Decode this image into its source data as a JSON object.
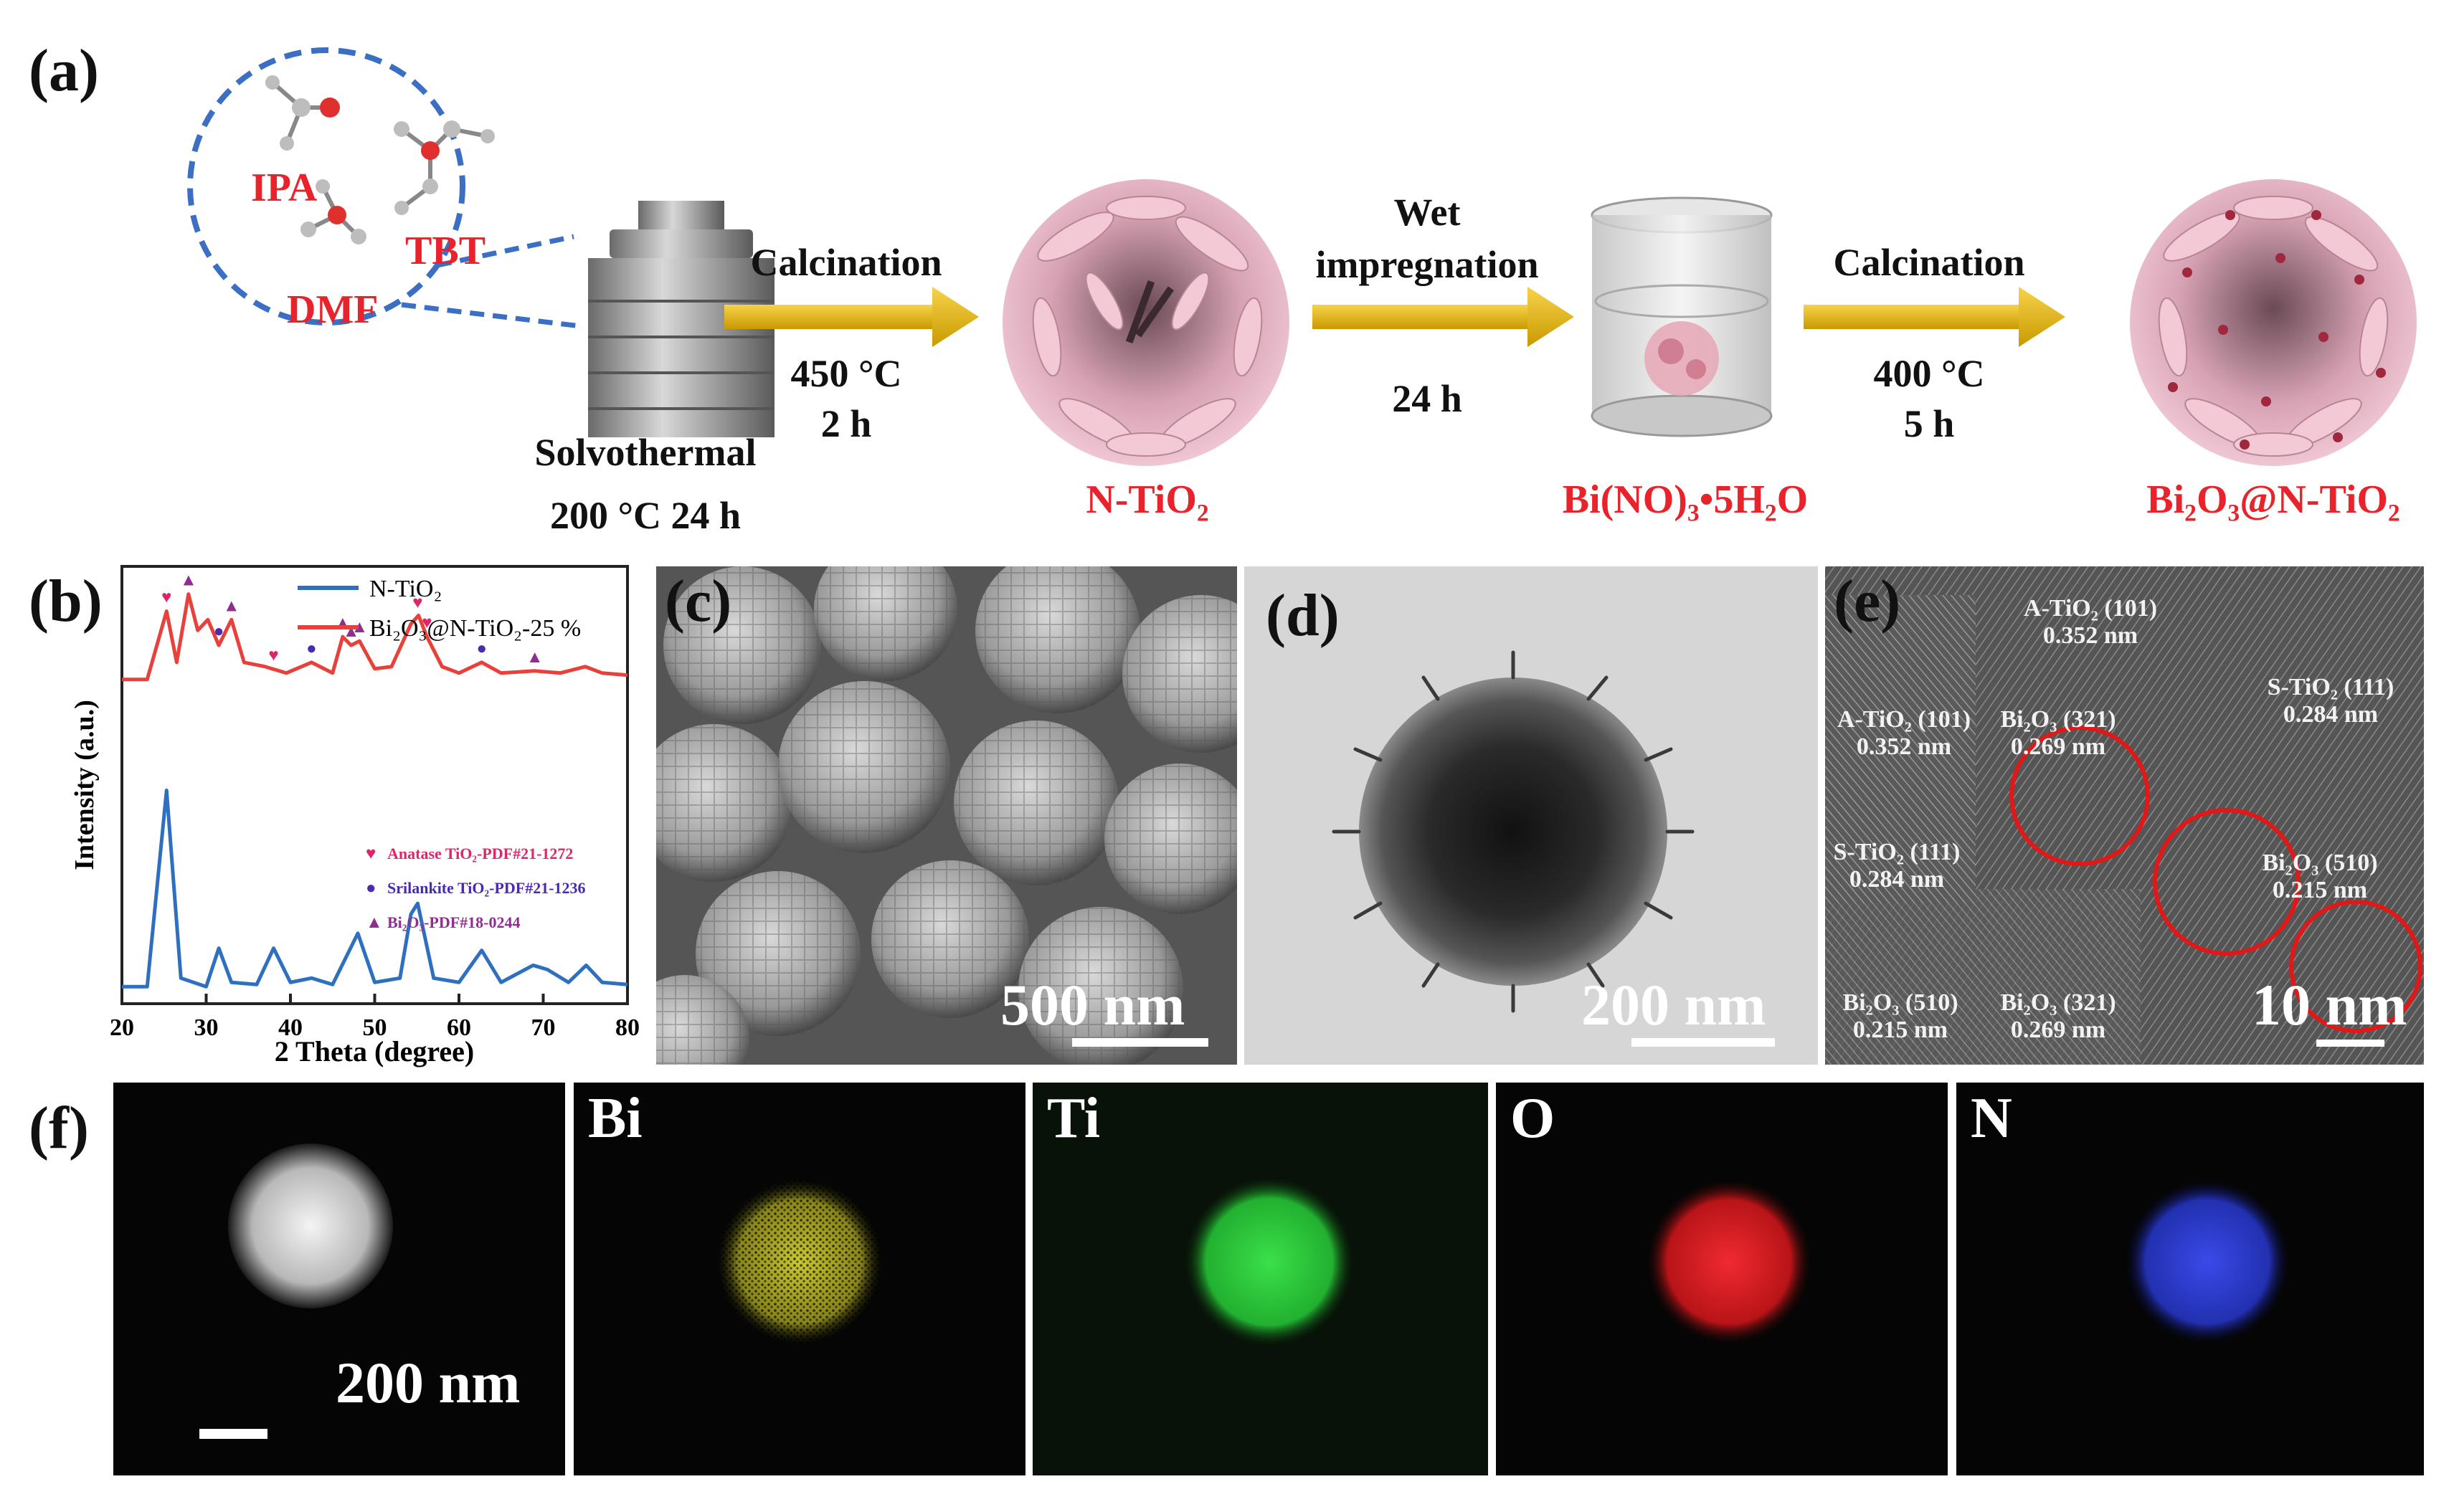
{
  "panel_a": {
    "letter": "(a)",
    "molecules": {
      "ipa": "IPA",
      "tbt": "TBT",
      "dmf": "DMF"
    },
    "solvothermal": {
      "line1": "Solvothermal",
      "line2": "200 °C 24 h"
    },
    "step1": {
      "label": "Calcination",
      "line1": "450 °C",
      "line2": "2 h"
    },
    "product1": "N-TiO₂",
    "step2": {
      "label1": "Wet",
      "label2": "impregnation",
      "line1": "24 h"
    },
    "product2": "Bi(NO)₃•5H₂O",
    "step3": {
      "label": "Calcination",
      "line1": "400 °C",
      "line2": "5 h"
    },
    "product3": "Bi₂O₃@N-TiO₂",
    "colors": {
      "arrow": "#e8b800",
      "label_red": "#e8232b",
      "circle_dash": "#3a6fc4",
      "particle_pink": "#e8b5c4"
    }
  },
  "panel_b": {
    "letter": "(b)",
    "legend_markers": {
      "anatase": "Anatase TiO₂-PDF#21-1272",
      "srilankite": "Srilankite TiO₂-PDF#21-1236",
      "bi2o3": "Bi₂O₃-PDF#18-0244"
    }
  },
  "chart_data": {
    "type": "line",
    "xlabel": "2 Theta (degree)",
    "ylabel": "Intensity (a.u.)",
    "xlim": [
      20,
      80
    ],
    "xticks": [
      20,
      30,
      40,
      50,
      60,
      70,
      80
    ],
    "legend_position": "top-right",
    "series": [
      {
        "name": "N-TiO₂",
        "color": "#2e6fc0",
        "x": [
          20,
          23,
          25.3,
          27,
          30,
          31.5,
          33,
          36,
          38,
          40,
          42.5,
          45,
          48,
          50,
          53,
          54.3,
          55.1,
          57,
          60,
          62.7,
          65,
          68.8,
          70.5,
          73,
          75.1,
          77,
          80
        ],
        "y": [
          0.08,
          0.08,
          1.0,
          0.12,
          0.08,
          0.26,
          0.1,
          0.09,
          0.26,
          0.1,
          0.12,
          0.09,
          0.33,
          0.1,
          0.12,
          0.42,
          0.47,
          0.12,
          0.1,
          0.25,
          0.1,
          0.18,
          0.16,
          0.1,
          0.18,
          0.1,
          0.09
        ]
      },
      {
        "name": "Bi₂O₃@N-TiO₂-25 %",
        "color": "#e8413c",
        "x": [
          20,
          23,
          25.3,
          26.5,
          27.9,
          29,
          30.2,
          31.5,
          33,
          34.5,
          37,
          39.5,
          42.5,
          45,
          46.2,
          47.2,
          48.2,
          50,
          52,
          54.3,
          55.2,
          56.2,
          58,
          60,
          62.7,
          65,
          69,
          72,
          75,
          77,
          80
        ],
        "y": [
          1.52,
          1.52,
          1.84,
          1.6,
          1.92,
          1.75,
          1.8,
          1.68,
          1.8,
          1.6,
          1.58,
          1.55,
          1.6,
          1.55,
          1.72,
          1.68,
          1.7,
          1.57,
          1.58,
          1.78,
          1.82,
          1.72,
          1.58,
          1.55,
          1.6,
          1.55,
          1.56,
          1.55,
          1.58,
          1.55,
          1.54
        ]
      }
    ],
    "markers": [
      {
        "phase": "anatase",
        "symbol": "♥",
        "color": "#e0246a",
        "x": [
          25.3,
          38,
          55.1,
          56.2
        ]
      },
      {
        "phase": "srilankite",
        "symbol": "●",
        "color": "#4a2bb0",
        "x": [
          31.5,
          42.5,
          62.7
        ]
      },
      {
        "phase": "bi2o3",
        "symbol": "▲",
        "color": "#8e2f8f",
        "x": [
          27.9,
          33,
          46.2,
          47.2,
          48.2,
          69
        ]
      }
    ]
  },
  "panel_c": {
    "letter": "(c)",
    "scale": "500 nm"
  },
  "panel_d": {
    "letter": "(d)",
    "scale": "200 nm"
  },
  "panel_e": {
    "letter": "(e)",
    "scale": "10 nm",
    "labels": [
      {
        "l1": "A-TiO₂ (101)",
        "l2": "0.352 nm"
      },
      {
        "l1": "S-TiO₂ (111)",
        "l2": "0.284 nm"
      },
      {
        "l1": "A-TiO₂ (101)",
        "l2": "0.352 nm"
      },
      {
        "l1": "Bi₂O₃ (321)",
        "l2": "0.269 nm"
      },
      {
        "l1": "Bi₂O₃ (510)",
        "l2": "0.215 nm"
      },
      {
        "l1": "S-TiO₂ (111)",
        "l2": "0.284 nm"
      },
      {
        "l1": "Bi₂O₃ (510)",
        "l2": "0.215 nm"
      },
      {
        "l1": "Bi₂O₃ (321)",
        "l2": "0.269 nm"
      }
    ]
  },
  "panel_f": {
    "letter": "(f)",
    "scale": "200 nm",
    "maps": [
      {
        "element": "",
        "color": "#d8d8d8"
      },
      {
        "element": "Bi",
        "color": "#d6d234"
      },
      {
        "element": "Ti",
        "color": "#2ccf3c"
      },
      {
        "element": "O",
        "color": "#e8242a"
      },
      {
        "element": "N",
        "color": "#2f3fd8"
      }
    ]
  }
}
